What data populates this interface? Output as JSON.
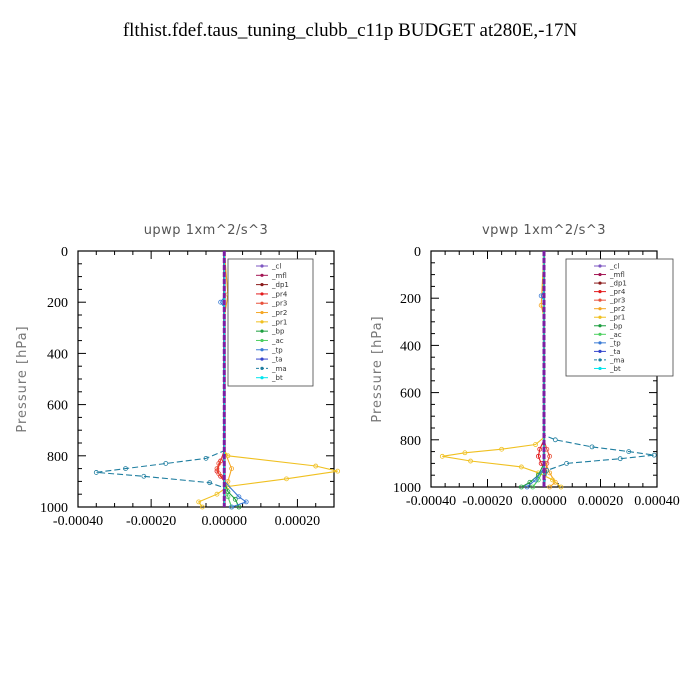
{
  "title": "flthist.fdef.taus_tuning_clubb_c11p  BUDGET at280E,-17N",
  "chart_data": [
    {
      "type": "line",
      "title": "upwp   1xm^2/s^3",
      "ylabel": "Pressure [hPa]",
      "xlabel": "",
      "xlim": [
        -0.0004,
        0.0003
      ],
      "ylim": [
        1000,
        0
      ],
      "xticks": [
        -0.0004,
        -0.0002,
        0.0,
        0.0002
      ],
      "xtick_labels": [
        "-0.00040",
        "-0.00020",
        "0.00000",
        "0.00020"
      ],
      "yticks": [
        0,
        200,
        400,
        600,
        800,
        1000
      ],
      "ytick_labels": [
        "0",
        "200",
        "400",
        "600",
        "800",
        "1000"
      ],
      "legend_position": "top-right",
      "series": [
        {
          "name": "_cl",
          "color": "#7e57c2",
          "dash": "",
          "points": [
            [
              0,
              0
            ],
            [
              0,
              200
            ],
            [
              0,
              500
            ],
            [
              0,
              780
            ],
            [
              0,
              860
            ],
            [
              0,
              940
            ],
            [
              0,
              1000
            ]
          ]
        },
        {
          "name": "_mfl",
          "color": "#a31454",
          "dash": "",
          "points": [
            [
              0,
              0
            ],
            [
              0,
              300
            ],
            [
              0,
              700
            ],
            [
              0,
              800
            ],
            [
              0,
              900
            ],
            [
              0,
              1000
            ]
          ]
        },
        {
          "name": "_dp1",
          "color": "#8b1a1a",
          "dash": "",
          "points": [
            [
              0,
              0
            ],
            [
              0,
              400
            ],
            [
              0,
              780
            ],
            [
              0,
              1000
            ]
          ]
        },
        {
          "name": "_pr4",
          "color": "#e31a1c",
          "dash": "",
          "points": [
            [
              0,
              0
            ],
            [
              0,
              780
            ],
            [
              -1e-05,
              820
            ],
            [
              -2e-05,
              860
            ],
            [
              -1e-05,
              880
            ],
            [
              0,
              900
            ],
            [
              0,
              1000
            ]
          ]
        },
        {
          "name": "_pr3",
          "color": "#e8503a",
          "dash": "",
          "points": [
            [
              0,
              0
            ],
            [
              0,
              790
            ],
            [
              -1.5e-05,
              830
            ],
            [
              -2e-05,
              850
            ],
            [
              -1.5e-05,
              870
            ],
            [
              0,
              890
            ],
            [
              0,
              1000
            ]
          ]
        },
        {
          "name": "_pr2",
          "color": "#f5a623",
          "dash": "",
          "points": [
            [
              0,
              0
            ],
            [
              1e-05,
              170
            ],
            [
              0,
              260
            ],
            [
              0,
              780
            ],
            [
              2e-05,
              850
            ],
            [
              1e-05,
              900
            ],
            [
              0,
              940
            ],
            [
              0,
              1000
            ]
          ]
        },
        {
          "name": "_pr1",
          "color": "#f0c020",
          "dash": "",
          "points": [
            [
              0,
              0
            ],
            [
              0,
              780
            ],
            [
              1e-05,
              800
            ],
            [
              0.00025,
              840
            ],
            [
              0.00031,
              860
            ],
            [
              0.00017,
              890
            ],
            [
              1e-05,
              920
            ],
            [
              -2e-05,
              950
            ],
            [
              -7e-05,
              980
            ],
            [
              -6e-05,
              1000
            ]
          ]
        },
        {
          "name": "_bp",
          "color": "#1b9e3e",
          "dash": "",
          "points": [
            [
              0,
              0
            ],
            [
              0,
              900
            ],
            [
              1e-05,
              940
            ],
            [
              3e-05,
              970
            ],
            [
              4e-05,
              1000
            ]
          ]
        },
        {
          "name": "_ac",
          "color": "#4cd060",
          "dash": "",
          "points": [
            [
              0,
              0
            ],
            [
              0,
              920
            ],
            [
              1e-05,
              960
            ],
            [
              2e-05,
              1000
            ]
          ]
        },
        {
          "name": "_tp",
          "color": "#3a7bd5",
          "dash": "",
          "points": [
            [
              0,
              0
            ],
            [
              0,
              180
            ],
            [
              -1e-05,
              200
            ],
            [
              0,
              220
            ],
            [
              0,
              900
            ],
            [
              4e-05,
              960
            ],
            [
              6e-05,
              980
            ],
            [
              2e-05,
              1000
            ]
          ]
        },
        {
          "name": "_ta",
          "color": "#3344cc",
          "dash": "",
          "points": [
            [
              0,
              0
            ],
            [
              0,
              1000
            ]
          ]
        },
        {
          "name": "_ma",
          "color": "#1f7ea0",
          "dash": "6,3",
          "points": [
            [
              0,
              0
            ],
            [
              0,
              780
            ],
            [
              -5e-05,
              810
            ],
            [
              -0.00016,
              830
            ],
            [
              -0.00027,
              850
            ],
            [
              -0.00035,
              865
            ],
            [
              -0.00022,
              880
            ],
            [
              -4e-05,
              905
            ],
            [
              0,
              925
            ],
            [
              0,
              1000
            ]
          ]
        },
        {
          "name": "_bt",
          "color": "#00e5ee",
          "dash": "",
          "points": [
            [
              0,
              0
            ],
            [
              0,
              1000
            ]
          ]
        }
      ]
    },
    {
      "type": "line",
      "title": "vpwp   1xm^2/s^3",
      "ylabel": "Pressure [hPa]",
      "xlabel": "",
      "xlim": [
        -0.0004,
        0.0004
      ],
      "ylim": [
        1000,
        0
      ],
      "xticks": [
        -0.0004,
        -0.0002,
        0.0,
        0.0002,
        0.0004
      ],
      "xtick_labels": [
        "-0.00040",
        "-0.00020",
        "0.00000",
        "0.00020",
        "0.00040"
      ],
      "yticks": [
        0,
        200,
        400,
        600,
        800,
        1000
      ],
      "ytick_labels": [
        "0",
        "200",
        "400",
        "600",
        "800",
        "1000"
      ],
      "legend_position": "top-right",
      "series": [
        {
          "name": "_cl",
          "color": "#7e57c2",
          "dash": "",
          "points": [
            [
              0,
              0
            ],
            [
              0,
              300
            ],
            [
              0,
              600
            ],
            [
              0,
              800
            ],
            [
              0,
              900
            ],
            [
              0,
              1000
            ]
          ]
        },
        {
          "name": "_mfl",
          "color": "#a31454",
          "dash": "",
          "points": [
            [
              0,
              0
            ],
            [
              0,
              400
            ],
            [
              0,
              800
            ],
            [
              0,
              1000
            ]
          ]
        },
        {
          "name": "_dp1",
          "color": "#8b1a1a",
          "dash": "",
          "points": [
            [
              0,
              0
            ],
            [
              0,
              500
            ],
            [
              0,
              1000
            ]
          ]
        },
        {
          "name": "_pr4",
          "color": "#e31a1c",
          "dash": "",
          "points": [
            [
              0,
              0
            ],
            [
              0,
              800
            ],
            [
              -1.5e-05,
              840
            ],
            [
              -2e-05,
              870
            ],
            [
              -1e-05,
              900
            ],
            [
              0,
              920
            ],
            [
              0,
              1000
            ]
          ]
        },
        {
          "name": "_pr3",
          "color": "#e8503a",
          "dash": "",
          "points": [
            [
              0,
              0
            ],
            [
              0,
              800
            ],
            [
              1e-05,
              840
            ],
            [
              2e-05,
              870
            ],
            [
              1e-05,
              900
            ],
            [
              0,
              1000
            ]
          ]
        },
        {
          "name": "_pr2",
          "color": "#f5a623",
          "dash": "",
          "points": [
            [
              0,
              0
            ],
            [
              -1e-05,
              230
            ],
            [
              0,
              280
            ],
            [
              0,
              880
            ],
            [
              2e-05,
              940
            ],
            [
              4e-05,
              980
            ],
            [
              2e-05,
              1000
            ]
          ]
        },
        {
          "name": "_pr1",
          "color": "#f0c020",
          "dash": "",
          "points": [
            [
              0,
              0
            ],
            [
              0,
              790
            ],
            [
              -3e-05,
              820
            ],
            [
              -0.00015,
              840
            ],
            [
              -0.00028,
              855
            ],
            [
              -0.00036,
              870
            ],
            [
              -0.00026,
              890
            ],
            [
              -8e-05,
              915
            ],
            [
              -2e-05,
              940
            ],
            [
              3e-05,
              970
            ],
            [
              6e-05,
              1000
            ]
          ]
        },
        {
          "name": "_bp",
          "color": "#1b9e3e",
          "dash": "",
          "points": [
            [
              0,
              0
            ],
            [
              0,
              900
            ],
            [
              -2e-05,
              950
            ],
            [
              -5e-05,
              980
            ],
            [
              -8e-05,
              1000
            ]
          ]
        },
        {
          "name": "_ac",
          "color": "#4cd060",
          "dash": "",
          "points": [
            [
              0,
              0
            ],
            [
              0,
              920
            ],
            [
              -2e-05,
              970
            ],
            [
              -4e-05,
              1000
            ]
          ]
        },
        {
          "name": "_tp",
          "color": "#3a7bd5",
          "dash": "",
          "points": [
            [
              0,
              0
            ],
            [
              0,
              170
            ],
            [
              -1e-05,
              190
            ],
            [
              0,
              210
            ],
            [
              0,
              920
            ],
            [
              -3e-05,
              970
            ],
            [
              -6e-05,
              1000
            ]
          ]
        },
        {
          "name": "_ta",
          "color": "#3344cc",
          "dash": "",
          "points": [
            [
              0,
              0
            ],
            [
              0,
              1000
            ]
          ]
        },
        {
          "name": "_ma",
          "color": "#1f7ea0",
          "dash": "6,3",
          "points": [
            [
              0,
              0
            ],
            [
              0,
              780
            ],
            [
              4e-05,
              800
            ],
            [
              0.00017,
              830
            ],
            [
              0.0003,
              850
            ],
            [
              0.00039,
              865
            ],
            [
              0.00027,
              880
            ],
            [
              8e-05,
              900
            ],
            [
              1e-05,
              930
            ],
            [
              0,
              1000
            ]
          ]
        },
        {
          "name": "_bt",
          "color": "#00e5ee",
          "dash": "",
          "points": [
            [
              0,
              0
            ],
            [
              0,
              1000
            ]
          ]
        }
      ]
    }
  ]
}
